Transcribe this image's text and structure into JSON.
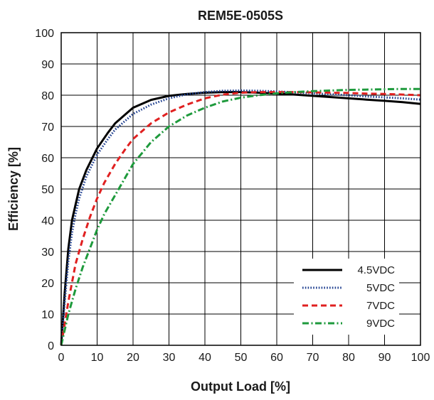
{
  "chart_data": {
    "type": "line",
    "title": "REM5E-0505S",
    "xlabel": "Output Load [%]",
    "ylabel": "Efficiency [%]",
    "xlim": [
      0,
      100
    ],
    "ylim": [
      0,
      100
    ],
    "xticks": [
      0,
      10,
      20,
      30,
      40,
      50,
      60,
      70,
      80,
      90,
      100
    ],
    "yticks": [
      0,
      10,
      20,
      30,
      40,
      50,
      60,
      70,
      80,
      90,
      100
    ],
    "grid": true,
    "legend_position": "bottom-right",
    "series": [
      {
        "name": "4.5VDC",
        "color": "#000000",
        "dash": "solid",
        "x": [
          0,
          1,
          2,
          3,
          4,
          5,
          7,
          10,
          13,
          15,
          18,
          20,
          25,
          30,
          35,
          40,
          45,
          50,
          55,
          60,
          65,
          70,
          75,
          80,
          85,
          90,
          95,
          100
        ],
        "y": [
          0,
          17,
          31,
          40,
          45,
          50,
          56,
          63,
          68,
          71,
          74,
          76,
          78.5,
          79.8,
          80.4,
          80.8,
          81,
          81,
          80.8,
          80.5,
          80.2,
          79.8,
          79.4,
          79,
          78.6,
          78.2,
          77.8,
          77.2
        ]
      },
      {
        "name": "5VDC",
        "color": "#1f3f8f",
        "dash": "dotted",
        "x": [
          0,
          1,
          2,
          3,
          4,
          5,
          7,
          10,
          13,
          15,
          18,
          20,
          25,
          30,
          35,
          40,
          45,
          50,
          55,
          60,
          65,
          70,
          75,
          80,
          85,
          90,
          95,
          100
        ],
        "y": [
          0,
          14,
          27,
          36,
          42,
          47,
          54,
          61,
          66,
          69,
          72,
          74,
          77,
          79,
          80.3,
          81,
          81.4,
          81.5,
          81.4,
          81.2,
          80.9,
          80.6,
          80.3,
          80,
          79.6,
          79.3,
          79,
          78.6
        ]
      },
      {
        "name": "7VDC",
        "color": "#e02020",
        "dash": "dashed",
        "x": [
          0,
          2,
          4,
          6,
          8,
          10,
          12,
          15,
          18,
          20,
          25,
          30,
          35,
          40,
          45,
          50,
          55,
          60,
          65,
          70,
          75,
          80,
          85,
          90,
          95,
          100
        ],
        "y": [
          0,
          14,
          26,
          34,
          41,
          47,
          52,
          58,
          63,
          66,
          71,
          74.5,
          77,
          79,
          80.2,
          80.8,
          81,
          81,
          81,
          80.9,
          80.8,
          80.7,
          80.5,
          80.4,
          80.2,
          80
        ]
      },
      {
        "name": "9VDC",
        "color": "#1e9a3c",
        "dash": "dashdot",
        "x": [
          0,
          2,
          4,
          6,
          8,
          10,
          12,
          15,
          18,
          20,
          25,
          30,
          35,
          40,
          45,
          50,
          55,
          60,
          65,
          70,
          75,
          80,
          85,
          90,
          95,
          100
        ],
        "y": [
          0,
          10,
          18,
          25,
          31,
          37,
          42,
          48,
          54,
          58,
          65,
          70,
          73.5,
          76,
          78,
          79.2,
          80,
          80.6,
          81,
          81.3,
          81.5,
          81.7,
          81.8,
          81.9,
          82,
          82
        ]
      }
    ]
  }
}
